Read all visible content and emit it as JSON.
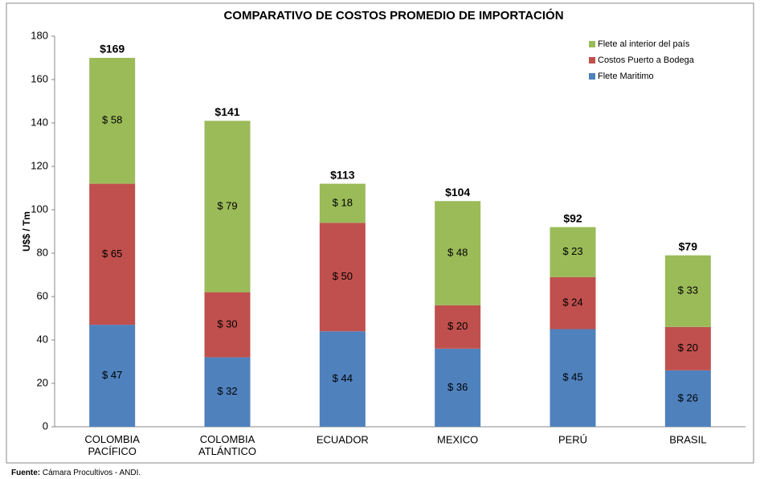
{
  "chart_data": {
    "type": "stacked_bar",
    "title": "COMPARATIVO DE COSTOS PROMEDIO DE IMPORTACIÓN",
    "y_label": "U$$ / Tm",
    "categories": [
      "COLOMBIA PACÍFICO",
      "COLOMBIA ATLÁNTICO",
      "ECUADOR",
      "MEXICO",
      "PERÚ",
      "BRASIL"
    ],
    "series": [
      {
        "name": "Flete Maritimo",
        "color": "#4f81bd",
        "values": [
          47,
          32,
          44,
          36,
          45,
          26
        ],
        "value_labels": [
          "$ 47",
          "$ 32",
          "$ 44",
          "$ 36",
          "$ 45",
          "$ 26"
        ]
      },
      {
        "name": "Costos Puerto a Bodega",
        "color": "#c0504d",
        "values": [
          65,
          30,
          50,
          20,
          24,
          20
        ],
        "value_labels": [
          "$ 65",
          "$ 30",
          "$ 50",
          "$ 20",
          "$ 24",
          "$ 20"
        ]
      },
      {
        "name": "Flete al interior del país",
        "color": "#9bbb59",
        "values": [
          58,
          79,
          18,
          48,
          23,
          33
        ],
        "value_labels": [
          "$ 58",
          "$ 79",
          "$ 18",
          "$ 48",
          "$ 23",
          "$ 33"
        ]
      }
    ],
    "total_labels": [
      "$169",
      "$141",
      "$113",
      "$104",
      "$92",
      "$79"
    ],
    "ylim": [
      0,
      180
    ],
    "yticks": [
      0,
      20,
      40,
      60,
      80,
      100,
      120,
      140,
      160,
      180
    ],
    "grid": false,
    "legend": "top-right",
    "source_label": "Fuente:",
    "source": "Cámara Procultivos - ANDI."
  }
}
